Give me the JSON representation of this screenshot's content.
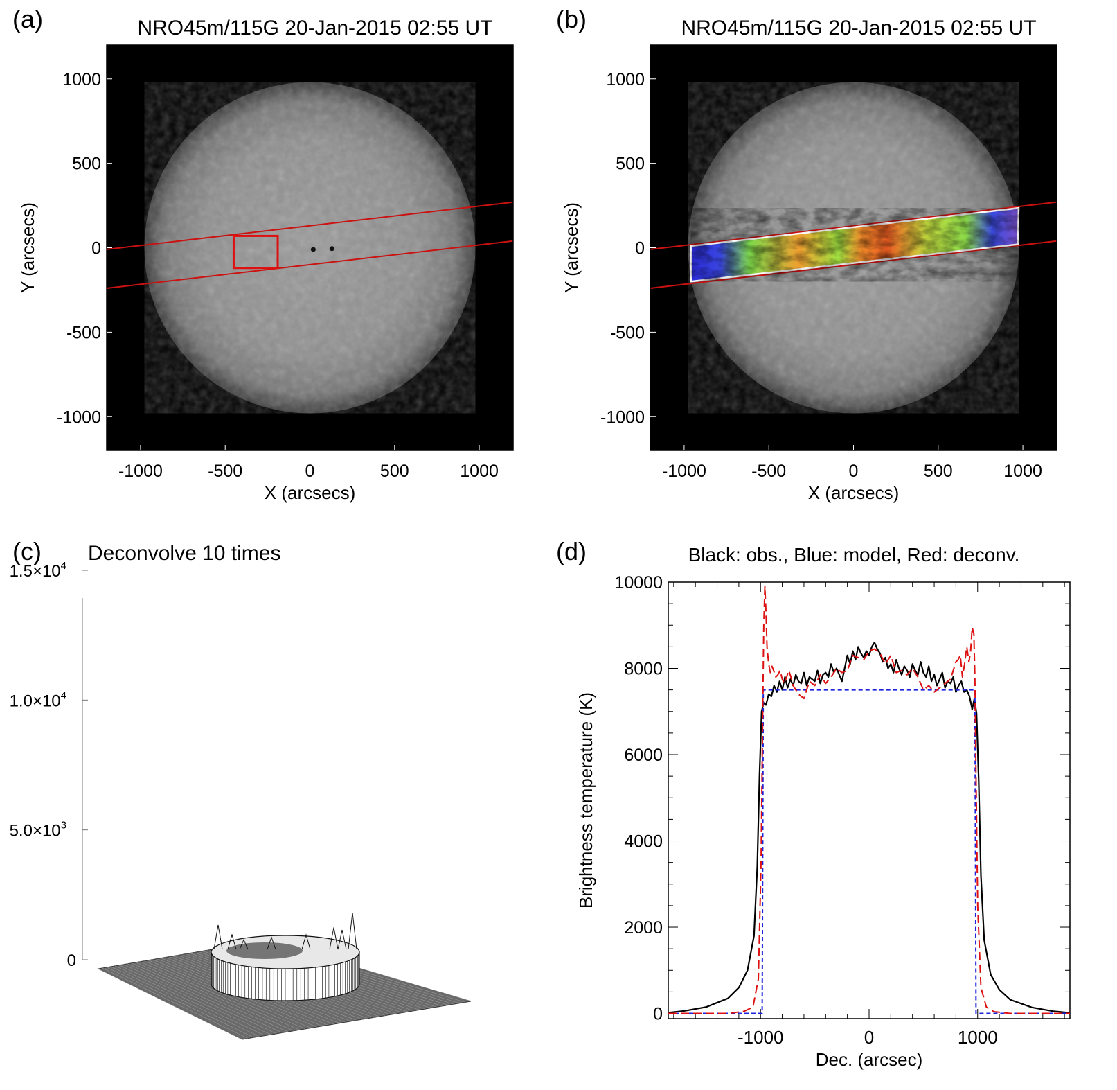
{
  "panels": {
    "a": {
      "letter": "(a)",
      "title": "NRO45m/115G 20-Jan-2015 02:55 UT"
    },
    "b": {
      "letter": "(b)",
      "title": "NRO45m/115G 20-Jan-2015 02:55 UT"
    },
    "c": {
      "letter": "(c)",
      "title": "Deconvolve 10 times"
    },
    "d": {
      "letter": "(d)",
      "title": "Black: obs., Blue: model, Red: deconv."
    }
  },
  "colors": {
    "sky": "#000000",
    "scan_strip": "#cc1111",
    "box": "#dd1111",
    "obs": "#000000",
    "model": "#1d22dd",
    "deconv": "#dd1111"
  },
  "chart_data": [
    {
      "id": "a",
      "type": "image",
      "title": "NRO45m/115G 20-Jan-2015 02:55 UT",
      "xlabel": "X (arcsecs)",
      "ylabel": "Y (arcsecs)",
      "xlim": [
        -1200,
        1200
      ],
      "ylim": [
        -1200,
        1200
      ],
      "xticks": [
        -1000,
        -500,
        0,
        500,
        1000
      ],
      "yticks": [
        -1000,
        -500,
        0,
        500,
        1000
      ],
      "solar_radius": 975,
      "scan_strip": {
        "lower_line": [
          [
            -1200,
            -240
          ],
          [
            1200,
            40
          ]
        ],
        "upper_line": [
          [
            -1200,
            -10
          ],
          [
            1200,
            270
          ]
        ]
      },
      "box": {
        "x": [
          -450,
          -190
        ],
        "y": [
          -120,
          70
        ]
      },
      "sunspots": [
        [
          20,
          -10
        ],
        [
          130,
          -5
        ]
      ]
    },
    {
      "id": "b",
      "type": "image",
      "title": "NRO45m/115G 20-Jan-2015 02:55 UT",
      "xlabel": "X (arcsecs)",
      "ylabel": "Y (arcsecs)",
      "xlim": [
        -1200,
        1200
      ],
      "ylim": [
        -1200,
        1200
      ],
      "xticks": [
        -1000,
        -500,
        0,
        500,
        1000
      ],
      "yticks": [
        -1000,
        -500,
        0,
        500,
        1000
      ],
      "solar_radius": 975,
      "scan_strip": {
        "lower_line": [
          [
            -1200,
            -240
          ],
          [
            1200,
            40
          ]
        ],
        "upper_line": [
          [
            -1200,
            -10
          ],
          [
            1200,
            270
          ]
        ]
      },
      "overlay_strip": [
        [
          -960,
          -200
        ],
        [
          970,
          20
        ],
        [
          975,
          235
        ],
        [
          -960,
          10
        ]
      ]
    },
    {
      "id": "c",
      "type": "surface",
      "title": "Deconvolve 10 times",
      "zticks": [
        "0",
        "5.0×10",
        "1.0×10",
        "1.5×10"
      ],
      "ztick_exponents": [
        "",
        "3",
        "4",
        "4"
      ],
      "zlim": [
        0,
        15000
      ],
      "plateau_level": 7500,
      "limb_spike_max": 9400
    },
    {
      "id": "d",
      "type": "line",
      "title": "Black: obs., Blue: model, Red: deconv.",
      "xlabel": "Dec. (arcsec)",
      "ylabel": "Brightness temperature (K)",
      "xlim": [
        -1850,
        1850
      ],
      "ylim": [
        -120,
        10000
      ],
      "xticks": [
        -1000,
        0,
        1000
      ],
      "yticks": [
        0,
        2000,
        4000,
        6000,
        8000,
        10000
      ],
      "series": [
        {
          "color": "#000000",
          "dash": "",
          "x": [
            -1850,
            -1700,
            -1500,
            -1300,
            -1200,
            -1120,
            -1060,
            -1030,
            -1010,
            -990,
            -970,
            -950,
            -925,
            -900,
            -875,
            -850,
            -825,
            -800,
            -775,
            -750,
            -725,
            -700,
            -675,
            -650,
            -625,
            -600,
            -575,
            -550,
            -525,
            -500,
            -475,
            -450,
            -425,
            -400,
            -375,
            -350,
            -325,
            -300,
            -275,
            -250,
            -225,
            -200,
            -175,
            -150,
            -125,
            -100,
            -75,
            -50,
            -25,
            0,
            25,
            50,
            75,
            100,
            125,
            150,
            175,
            200,
            225,
            250,
            275,
            300,
            325,
            350,
            375,
            400,
            425,
            450,
            475,
            500,
            525,
            550,
            575,
            600,
            625,
            650,
            675,
            700,
            725,
            750,
            775,
            800,
            825,
            850,
            875,
            900,
            925,
            950,
            970,
            990,
            1010,
            1030,
            1060,
            1120,
            1200,
            1300,
            1500,
            1700,
            1850
          ],
          "y": [
            20,
            60,
            150,
            350,
            600,
            1000,
            1800,
            3400,
            5500,
            7000,
            7200,
            7150,
            7400,
            7350,
            7600,
            7450,
            7700,
            7500,
            7800,
            7550,
            7750,
            7600,
            7850,
            7700,
            7650,
            7900,
            7600,
            7800,
            7750,
            7700,
            7950,
            7650,
            7850,
            7900,
            7800,
            8100,
            7900,
            8000,
            7850,
            7700,
            8000,
            8300,
            8100,
            8400,
            8200,
            8500,
            8350,
            8250,
            8400,
            8300,
            8500,
            8600,
            8450,
            8350,
            8150,
            8250,
            8000,
            8100,
            7900,
            8200,
            8000,
            7850,
            8050,
            7950,
            7800,
            8100,
            7950,
            7850,
            8150,
            7900,
            7800,
            8050,
            7700,
            7850,
            7600,
            7750,
            7900,
            7550,
            7700,
            7650,
            7800,
            7450,
            7600,
            7700,
            7450,
            7500,
            7350,
            7050,
            7300,
            6950,
            5400,
            3200,
            1700,
            900,
            550,
            320,
            140,
            50,
            15
          ]
        },
        {
          "color": "#1d22dd",
          "dash": "6 4",
          "x": [
            -1850,
            -985,
            -975,
            975,
            985,
            1850
          ],
          "y": [
            0,
            0,
            7500,
            7500,
            0,
            0
          ]
        },
        {
          "color": "#dd1111",
          "dash": "12 6",
          "x": [
            -1850,
            -1300,
            -1150,
            -1070,
            -1020,
            -995,
            -980,
            -970,
            -960,
            -950,
            -940,
            -925,
            -910,
            -895,
            -880,
            -860,
            -840,
            -820,
            -800,
            -780,
            -760,
            -740,
            -720,
            -700,
            -650,
            -600,
            -550,
            -500,
            -450,
            -400,
            -350,
            -300,
            -250,
            -200,
            -150,
            -100,
            -50,
            0,
            50,
            100,
            150,
            200,
            250,
            300,
            350,
            400,
            450,
            500,
            550,
            600,
            650,
            700,
            750,
            800,
            820,
            840,
            860,
            880,
            900,
            920,
            935,
            950,
            965,
            975,
            985,
            1000,
            1030,
            1080,
            1150,
            1300,
            1850
          ],
          "y": [
            0,
            0,
            50,
            150,
            800,
            3500,
            7000,
            9000,
            9900,
            9300,
            8500,
            8100,
            7900,
            8050,
            7950,
            7800,
            7850,
            7950,
            7750,
            7650,
            7800,
            7950,
            7800,
            7600,
            7400,
            7300,
            7700,
            7600,
            7850,
            7650,
            7800,
            8000,
            7900,
            7950,
            8300,
            8250,
            8200,
            8400,
            8450,
            8350,
            8100,
            8300,
            7900,
            7950,
            7850,
            8000,
            7800,
            7500,
            7600,
            7450,
            7550,
            7650,
            7750,
            8150,
            8200,
            8300,
            7800,
            8100,
            8500,
            8150,
            8400,
            8950,
            8800,
            7800,
            5500,
            2500,
            600,
            150,
            40,
            0,
            0
          ]
        }
      ]
    }
  ]
}
